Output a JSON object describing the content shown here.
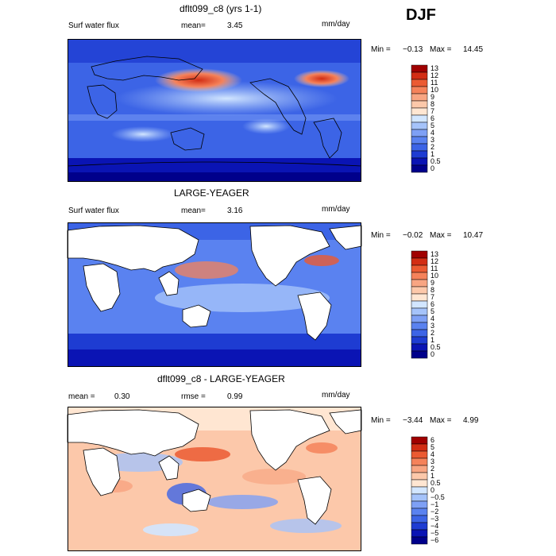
{
  "season": "DJF",
  "panels": [
    {
      "title": "dflt099_c8 (yrs 1-1)",
      "left_label": "Surf water flux",
      "mean_label": "mean=",
      "mean_value": "3.45",
      "units": "mm/day",
      "min_label": "Min =",
      "min_value": "−0.13",
      "max_label": "Max =",
      "max_value": "14.45",
      "scale": "full",
      "colorbar_levels": [
        "0",
        "0.5",
        "1",
        "2",
        "3",
        "4",
        "5",
        "6",
        "7",
        "8",
        "9",
        "10",
        "11",
        "12",
        "13"
      ]
    },
    {
      "title": "LARGE-YEAGER",
      "left_label": "Surf water flux",
      "mean_label": "mean=",
      "mean_value": "3.16",
      "units": "mm/day",
      "min_label": "Min =",
      "min_value": "−0.02",
      "max_label": "Max =",
      "max_value": "10.47",
      "scale": "ocean",
      "colorbar_levels": [
        "0",
        "0.5",
        "1",
        "2",
        "3",
        "4",
        "5",
        "6",
        "7",
        "8",
        "9",
        "10",
        "11",
        "12",
        "13"
      ]
    },
    {
      "title": "dflt099_c8 - LARGE-YEAGER",
      "mean_label": "mean =",
      "mean_value": "0.30",
      "rmse_label": "rmse =",
      "rmse_value": "0.99",
      "units": "mm/day",
      "min_label": "Min =",
      "min_value": "−3.44",
      "max_label": "Max =",
      "max_value": "4.99",
      "scale": "diff",
      "colorbar_levels": [
        "−6",
        "−5",
        "−4",
        "−3",
        "−2",
        "−1",
        "−0.5",
        "0",
        "0.5",
        "1",
        "2",
        "3",
        "4",
        "5",
        "6"
      ]
    }
  ],
  "colors": {
    "seq": [
      "#00008b",
      "#0a14b4",
      "#1e3cd2",
      "#3c64e6",
      "#5a82f0",
      "#7ea0f5",
      "#a5c3fa",
      "#d2e6ff",
      "#ffe6d2",
      "#fcc8aa",
      "#f8a582",
      "#f5825a",
      "#eb5a32",
      "#d22d14",
      "#a00000"
    ],
    "diff": [
      "#00008b",
      "#0a14b4",
      "#1e3cd2",
      "#3c64e6",
      "#5a82f0",
      "#7ea0f5",
      "#a5c3fa",
      "#d2e6ff",
      "#ffe6d2",
      "#fcc8aa",
      "#f8a582",
      "#f5825a",
      "#eb5a32",
      "#d22d14",
      "#a00000"
    ]
  }
}
